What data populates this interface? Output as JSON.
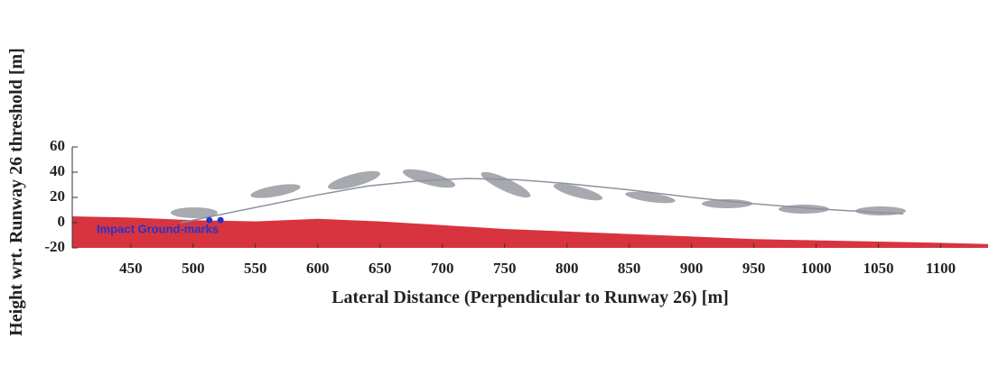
{
  "chart_data": {
    "type": "line",
    "xlabel": "Lateral Distance (Perpendicular to Runway 26) [m]",
    "ylabel": "Height wrt. Runway 26 threshold [m]",
    "xlim": [
      403,
      1138
    ],
    "ylim": [
      -20,
      60
    ],
    "xticks": [
      450,
      500,
      550,
      600,
      650,
      700,
      750,
      800,
      850,
      900,
      950,
      1000,
      1050,
      1100
    ],
    "yticks": [
      -20,
      0,
      20,
      40,
      60
    ],
    "series": [
      {
        "kind": "area",
        "color": "#d8343f",
        "x": [
          403,
          450,
          500,
          550,
          600,
          650,
          700,
          750,
          800,
          850,
          900,
          950,
          1000,
          1050,
          1100,
          1138
        ],
        "values": [
          5,
          4,
          2,
          1,
          3,
          1,
          -2,
          -5,
          -7,
          -9,
          -11,
          -13,
          -14,
          -15,
          -16,
          -17
        ]
      },
      {
        "kind": "line",
        "color": "#8a93a0",
        "x": [
          490,
          520,
          560,
          600,
          640,
          680,
          720,
          760,
          800,
          850,
          900,
          950,
          1000,
          1050,
          1070
        ],
        "values": [
          0,
          6,
          14,
          22,
          29,
          33,
          35,
          34,
          31,
          26,
          20,
          15,
          11,
          8,
          7
        ]
      }
    ],
    "annotation": {
      "text": "Impact Ground-marks",
      "color": "#2233cc",
      "x": [
        513,
        522
      ],
      "y": [
        2,
        2
      ]
    }
  }
}
